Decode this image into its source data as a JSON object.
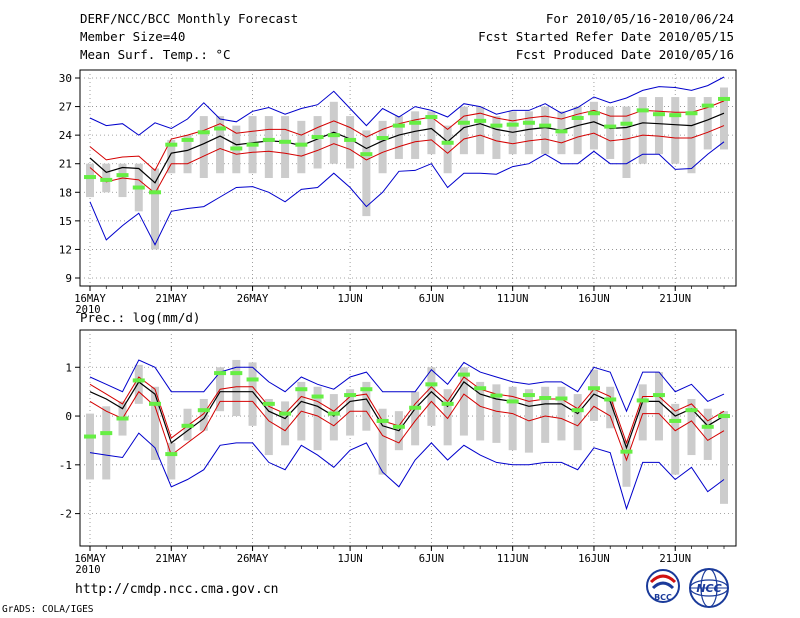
{
  "header": {
    "title": "DERF/NCC/BCC Monthly Forecast",
    "member_size": "Member Size=40",
    "variable": "Mean Surf. Temp.: °C",
    "forecast_period": "For 2010/05/16-2010/06/24",
    "started": "Fcst Started Refer Date 2010/05/15",
    "produced": "Fcst Produced Date 2010/05/16"
  },
  "footer": {
    "url": "http://cmdp.ncc.cma.gov.cn",
    "credit": "GrADS: COLA/IGES",
    "logo_bcc": "BCC",
    "logo_ncc": "NCC"
  },
  "colors": {
    "ensemble_mean": "#000000",
    "spread_band": "#d40000",
    "extremes": "#0000cc",
    "box": "#cccccc",
    "observed": "#66ee44",
    "grid": "#888888"
  },
  "chart_data": [
    {
      "type": "line",
      "title": "Mean Surf. Temp.: °C",
      "x_tick_labels": [
        "16MAY",
        "21MAY",
        "26MAY",
        "1JUN",
        "6JUN",
        "11JUN",
        "16JUN",
        "21JUN"
      ],
      "x_tick_days": [
        1,
        6,
        11,
        17,
        22,
        27,
        32,
        37
      ],
      "year_label": "2010",
      "xlim": [
        1,
        40
      ],
      "ylim": [
        9,
        30
      ],
      "y_ticks": [
        9,
        12,
        15,
        18,
        21,
        24,
        27,
        30
      ],
      "days": [
        1,
        2,
        3,
        4,
        5,
        6,
        7,
        8,
        9,
        10,
        11,
        12,
        13,
        14,
        15,
        16,
        17,
        18,
        19,
        20,
        21,
        22,
        23,
        24,
        25,
        26,
        27,
        28,
        29,
        30,
        31,
        32,
        33,
        34,
        35,
        36,
        37,
        38,
        39,
        40
      ],
      "series": [
        {
          "name": "ensemble mean",
          "values": [
            21.6,
            20.1,
            20.6,
            20.5,
            19.0,
            22.1,
            22.4,
            23.1,
            23.9,
            23.0,
            23.2,
            23.4,
            23.3,
            22.9,
            23.6,
            24.3,
            23.6,
            22.6,
            23.4,
            24.0,
            24.4,
            24.7,
            23.3,
            24.8,
            25.2,
            24.6,
            24.3,
            24.6,
            24.8,
            24.5,
            25.0,
            25.4,
            24.7,
            24.8,
            25.3,
            25.2,
            25.1,
            25.0,
            25.6,
            26.3
          ]
        },
        {
          "name": "spread upper",
          "values": [
            22.8,
            21.4,
            21.7,
            21.8,
            20.3,
            23.6,
            24.0,
            24.5,
            25.2,
            24.2,
            24.4,
            24.6,
            24.6,
            24.0,
            24.8,
            25.5,
            24.8,
            23.8,
            24.6,
            25.2,
            25.6,
            25.9,
            24.6,
            26.0,
            26.3,
            25.8,
            25.5,
            25.8,
            26.0,
            25.7,
            26.2,
            26.6,
            26.0,
            26.0,
            26.6,
            26.5,
            26.4,
            26.4,
            26.9,
            27.6
          ]
        },
        {
          "name": "spread lower",
          "values": [
            20.6,
            19.1,
            19.5,
            19.3,
            17.9,
            21.0,
            21.0,
            21.8,
            22.6,
            22.0,
            22.2,
            22.3,
            22.1,
            21.8,
            22.4,
            23.1,
            22.5,
            21.4,
            22.2,
            22.8,
            23.3,
            23.5,
            22.1,
            23.6,
            24.0,
            23.4,
            23.1,
            23.4,
            23.6,
            23.2,
            23.8,
            24.2,
            23.4,
            23.6,
            24.0,
            23.9,
            23.7,
            23.7,
            24.3,
            25.0
          ]
        },
        {
          "name": "ensemble max",
          "values": [
            25.8,
            25.0,
            25.2,
            24.0,
            25.3,
            24.7,
            25.7,
            27.4,
            25.7,
            25.4,
            26.5,
            26.9,
            26.2,
            26.8,
            27.2,
            28.6,
            26.8,
            25.0,
            26.8,
            25.9,
            27.0,
            26.6,
            25.9,
            27.3,
            27.0,
            26.2,
            26.6,
            26.6,
            27.3,
            26.3,
            26.9,
            28.0,
            27.4,
            27.9,
            28.7,
            29.1,
            29.0,
            28.7,
            29.2,
            30.1
          ]
        },
        {
          "name": "ensemble min",
          "values": [
            17.0,
            13.0,
            14.5,
            15.8,
            12.5,
            16.0,
            16.3,
            16.5,
            17.5,
            18.5,
            18.6,
            18.0,
            17.0,
            18.3,
            18.5,
            20.0,
            18.5,
            16.5,
            18.0,
            20.2,
            20.3,
            21.0,
            18.5,
            20.0,
            20.0,
            19.9,
            20.7,
            21.0,
            22.0,
            21.0,
            21.0,
            22.3,
            21.0,
            21.0,
            22.0,
            22.0,
            20.4,
            20.5,
            22.0,
            23.3
          ]
        },
        {
          "name": "box top",
          "values": [
            21.0,
            21.0,
            21.0,
            21.0,
            20.5,
            23.5,
            24.0,
            26.0,
            26.0,
            25.0,
            26.0,
            26.0,
            26.0,
            25.5,
            26.0,
            27.5,
            26.0,
            24.5,
            25.5,
            26.0,
            26.5,
            26.5,
            25.0,
            27.0,
            27.0,
            26.0,
            26.5,
            26.5,
            27.0,
            26.5,
            27.0,
            27.5,
            27.0,
            27.0,
            28.0,
            28.0,
            28.0,
            28.0,
            28.0,
            29.0
          ]
        },
        {
          "name": "box bottom",
          "values": [
            17.5,
            18.0,
            17.5,
            16.0,
            12.0,
            20.0,
            20.0,
            19.5,
            20.0,
            20.0,
            20.0,
            19.5,
            19.5,
            20.0,
            20.5,
            21.0,
            20.5,
            15.5,
            20.0,
            21.5,
            21.5,
            22.0,
            20.0,
            22.0,
            22.0,
            21.5,
            22.0,
            22.0,
            22.0,
            22.0,
            22.0,
            22.5,
            21.5,
            19.5,
            21.0,
            22.0,
            21.0,
            20.0,
            22.5,
            22.5
          ]
        },
        {
          "name": "observed",
          "values": [
            19.6,
            19.3,
            19.8,
            18.5,
            18.0,
            23.0,
            23.5,
            24.3,
            24.7,
            22.6,
            23.0,
            23.5,
            23.3,
            23.0,
            23.8,
            24.0,
            23.5,
            22.0,
            23.7,
            25.0,
            25.3,
            25.9,
            23.2,
            25.3,
            25.5,
            25.0,
            25.1,
            25.3,
            25.0,
            24.4,
            25.8,
            26.3,
            24.9,
            25.2,
            26.6,
            26.2,
            26.1,
            26.3,
            27.1,
            27.8
          ]
        }
      ]
    },
    {
      "type": "line",
      "title": "Prec.: log(mm/d)",
      "x_tick_labels": [
        "16MAY",
        "21MAY",
        "26MAY",
        "1JUN",
        "6JUN",
        "11JUN",
        "16JUN",
        "21JUN"
      ],
      "x_tick_days": [
        1,
        6,
        11,
        17,
        22,
        27,
        32,
        37
      ],
      "year_label": "2010",
      "xlim": [
        1,
        40
      ],
      "ylim": [
        -2.5,
        1.6
      ],
      "y_ticks": [
        -2,
        -1,
        0,
        1
      ],
      "days": [
        1,
        2,
        3,
        4,
        5,
        6,
        7,
        8,
        9,
        10,
        11,
        12,
        13,
        14,
        15,
        16,
        17,
        18,
        19,
        20,
        21,
        22,
        23,
        24,
        25,
        26,
        27,
        28,
        29,
        30,
        31,
        32,
        33,
        34,
        35,
        36,
        37,
        38,
        39,
        40
      ],
      "series": [
        {
          "name": "ensemble mean",
          "values": [
            0.5,
            0.35,
            0.15,
            0.7,
            0.45,
            -0.55,
            -0.3,
            -0.05,
            0.5,
            0.5,
            0.5,
            0.1,
            -0.05,
            0.3,
            0.2,
            0.0,
            0.3,
            0.35,
            -0.2,
            -0.3,
            0.15,
            0.5,
            0.2,
            0.7,
            0.45,
            0.35,
            0.3,
            0.2,
            0.25,
            0.25,
            0.05,
            0.45,
            0.3,
            -0.65,
            0.3,
            0.3,
            0.0,
            0.15,
            -0.2,
            0.0
          ]
        },
        {
          "name": "spread upper",
          "values": [
            0.65,
            0.45,
            0.25,
            0.8,
            0.55,
            -0.45,
            -0.2,
            0.05,
            0.55,
            0.6,
            0.6,
            0.2,
            0.05,
            0.4,
            0.3,
            0.1,
            0.4,
            0.45,
            -0.1,
            -0.2,
            0.25,
            0.6,
            0.3,
            0.8,
            0.55,
            0.45,
            0.4,
            0.3,
            0.35,
            0.35,
            0.15,
            0.55,
            0.4,
            -0.55,
            0.4,
            0.4,
            0.1,
            0.25,
            -0.1,
            0.1
          ]
        },
        {
          "name": "spread lower",
          "values": [
            0.3,
            0.1,
            -0.05,
            0.5,
            0.2,
            -0.8,
            -0.55,
            -0.3,
            0.3,
            0.3,
            0.3,
            -0.1,
            -0.3,
            0.1,
            0.0,
            -0.2,
            0.1,
            0.1,
            -0.4,
            -0.55,
            -0.1,
            0.3,
            -0.05,
            0.45,
            0.2,
            0.1,
            0.05,
            -0.1,
            0.0,
            -0.05,
            -0.2,
            0.2,
            0.0,
            -0.9,
            0.05,
            0.05,
            -0.3,
            -0.1,
            -0.5,
            -0.3
          ]
        },
        {
          "name": "ensemble max",
          "values": [
            0.8,
            0.65,
            0.5,
            1.15,
            1.0,
            0.5,
            0.5,
            0.5,
            0.9,
            1.0,
            1.0,
            0.7,
            0.5,
            0.8,
            0.65,
            0.55,
            0.8,
            0.9,
            0.5,
            0.5,
            0.5,
            0.95,
            0.65,
            1.1,
            0.9,
            0.8,
            0.7,
            0.65,
            0.7,
            0.7,
            0.5,
            1.0,
            0.9,
            0.1,
            0.9,
            0.9,
            0.5,
            0.65,
            0.3,
            0.45
          ]
        },
        {
          "name": "ensemble min",
          "values": [
            -0.75,
            -0.8,
            -0.85,
            -0.35,
            -0.65,
            -1.45,
            -1.3,
            -1.1,
            -0.6,
            -0.55,
            -0.55,
            -0.95,
            -1.1,
            -0.6,
            -0.8,
            -1.05,
            -0.7,
            -0.55,
            -1.15,
            -1.45,
            -0.9,
            -0.55,
            -0.9,
            -0.6,
            -0.8,
            -0.95,
            -1.0,
            -1.0,
            -0.95,
            -0.95,
            -1.1,
            -0.65,
            -0.75,
            -1.9,
            -0.95,
            -0.95,
            -1.3,
            -1.05,
            -1.55,
            -1.3
          ]
        },
        {
          "name": "box top",
          "values": [
            0.05,
            0.2,
            0.3,
            1.05,
            0.6,
            -0.55,
            0.15,
            0.35,
            1.0,
            1.15,
            1.1,
            0.35,
            0.3,
            0.7,
            0.6,
            0.45,
            0.55,
            0.7,
            0.15,
            0.1,
            0.5,
            1.0,
            0.55,
            1.0,
            0.7,
            0.65,
            0.6,
            0.55,
            0.6,
            0.6,
            0.45,
            0.95,
            0.6,
            -0.5,
            0.65,
            0.9,
            0.25,
            0.35,
            0.15,
            0.1
          ]
        },
        {
          "name": "box bottom",
          "values": [
            -1.3,
            -1.3,
            -0.4,
            0.25,
            -0.9,
            -1.3,
            -0.5,
            -0.3,
            0.1,
            0.0,
            -0.2,
            -0.8,
            -0.6,
            -0.5,
            -0.7,
            -0.5,
            -0.4,
            -0.3,
            -1.2,
            -0.7,
            -0.6,
            -0.2,
            -0.6,
            -0.4,
            -0.5,
            -0.55,
            -0.7,
            -0.75,
            -0.55,
            -0.5,
            -0.7,
            -0.1,
            -0.25,
            -1.45,
            -0.5,
            -0.5,
            -1.2,
            -0.8,
            -0.9,
            -1.8
          ]
        },
        {
          "name": "observed",
          "values": [
            -0.42,
            -0.35,
            -0.05,
            0.73,
            0.25,
            -0.78,
            -0.2,
            0.12,
            0.88,
            0.88,
            0.75,
            0.25,
            0.05,
            0.55,
            0.4,
            0.05,
            0.43,
            0.55,
            -0.1,
            -0.22,
            0.17,
            0.65,
            0.25,
            0.85,
            0.57,
            0.42,
            0.3,
            0.43,
            0.37,
            0.36,
            0.12,
            0.57,
            0.34,
            -0.73,
            0.32,
            0.43,
            -0.1,
            0.12,
            -0.22,
            0.0
          ]
        }
      ]
    }
  ]
}
